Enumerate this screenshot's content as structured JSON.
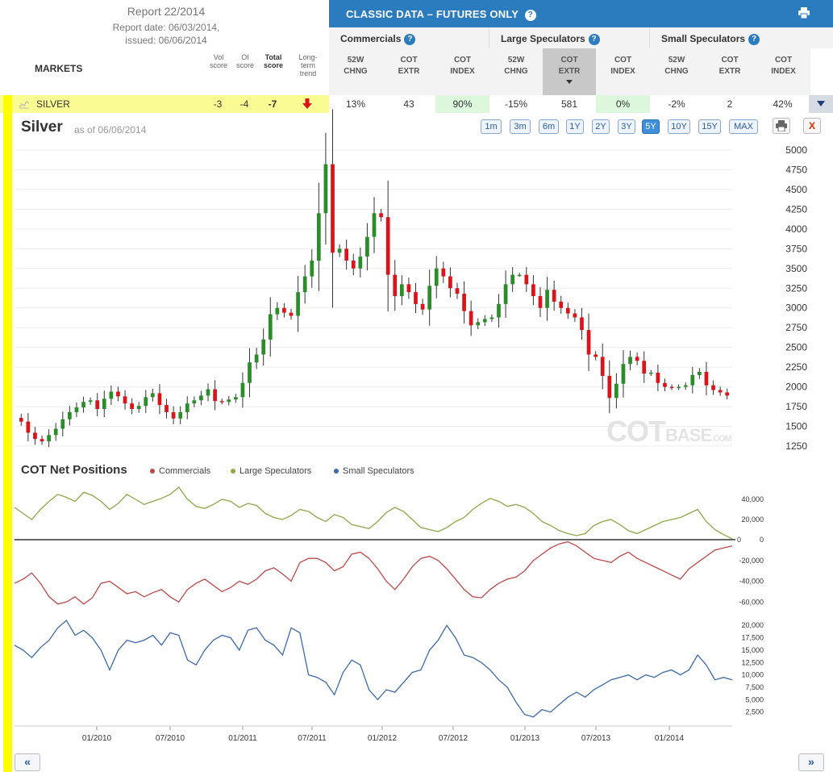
{
  "report": {
    "title": "Report 22/2014",
    "date": "Report date: 06/03/2014,",
    "issued": "issued: 06/06/2014"
  },
  "markets_header": "MARKETS",
  "score_headers": {
    "vol": [
      "Vol",
      "score"
    ],
    "oi": [
      "OI",
      "score"
    ],
    "total": [
      "Total",
      "score"
    ],
    "trend": [
      "Long-",
      "term",
      "trend"
    ]
  },
  "classic": {
    "title": "CLASSIC DATA – FUTURES ONLY",
    "help": "?",
    "print_icon": "print-icon"
  },
  "groups": [
    {
      "title": "Commercials",
      "cols": [
        [
          "52W",
          "CHNG"
        ],
        [
          "COT",
          "EXTR"
        ],
        [
          "COT",
          "INDEX"
        ]
      ]
    },
    {
      "title": "Large Speculators",
      "cols": [
        [
          "52W",
          "CHNG"
        ],
        [
          "COT",
          "EXTR"
        ],
        [
          "COT",
          "INDEX"
        ]
      ]
    },
    {
      "title": "Small Speculators",
      "cols": [
        [
          "52W",
          "CHNG"
        ],
        [
          "COT",
          "EXTR"
        ],
        [
          "COT",
          "INDEX"
        ]
      ]
    }
  ],
  "silver_row": {
    "name": "SILVER",
    "vol": "-3",
    "oi": "-4",
    "total": "-7",
    "trend": "down",
    "values": [
      "13%",
      "43",
      "90%",
      "-15%",
      "581",
      "0%",
      "-2%",
      "2",
      "42%"
    ],
    "highlight_green": [
      2,
      5
    ]
  },
  "chart_heading": {
    "title": "Silver",
    "asof": "as of 06/06/2014",
    "ranges": [
      "1m",
      "3m",
      "6m",
      "1Y",
      "2Y",
      "3Y",
      "5Y",
      "10Y",
      "15Y",
      "MAX"
    ],
    "active_range": "5Y",
    "close": "X"
  },
  "watermark": {
    "main": "COT",
    "rest": "BASE",
    "suffix": ".COM"
  },
  "cot_legend": {
    "title": "COT Net Positions",
    "items": [
      {
        "name": "Commercials",
        "color": "#b94a48"
      },
      {
        "name": "Large Speculators",
        "color": "#8ba84a"
      },
      {
        "name": "Small Speculators",
        "color": "#3e6aa6"
      }
    ]
  },
  "nav": {
    "prev": "«",
    "next": "»"
  },
  "colors": {
    "up": "#2a8d2a",
    "down": "#d9141a",
    "accent": "#2b7bbf",
    "highlight": "#fbfb94"
  },
  "chart_data": [
    {
      "type": "candlestick",
      "title": "Silver",
      "yticks": [
        1250,
        1500,
        1750,
        2000,
        2250,
        2500,
        2750,
        3000,
        3250,
        3500,
        3750,
        4000,
        4250,
        4500,
        4750,
        5000
      ],
      "ylim": [
        1250,
        5000
      ],
      "xticks": [
        "01/2010",
        "07/2010",
        "01/2011",
        "07/2011",
        "01/2012",
        "07/2012",
        "01/2013",
        "07/2013",
        "01/2014"
      ],
      "x_start": "2009-06",
      "x_end": "2014-06",
      "closes": [
        1560,
        1420,
        1340,
        1310,
        1390,
        1470,
        1590,
        1680,
        1740,
        1810,
        1830,
        1720,
        1850,
        1940,
        1880,
        1790,
        1720,
        1760,
        1870,
        1920,
        1770,
        1680,
        1600,
        1680,
        1790,
        1830,
        1890,
        1970,
        1820,
        1810,
        1840,
        1870,
        2050,
        2310,
        2410,
        2600,
        2920,
        3000,
        2940,
        2900,
        3200,
        3400,
        3600,
        4200,
        4820,
        3700,
        3750,
        3600,
        3500,
        3650,
        3900,
        4200,
        4150,
        3420,
        3150,
        3300,
        3200,
        3050,
        2980,
        3280,
        3500,
        3400,
        3250,
        3180,
        2960,
        2780,
        2820,
        2860,
        2880,
        3050,
        3300,
        3420,
        3420,
        3300,
        3150,
        3000,
        3230,
        3080,
        3000,
        2930,
        2880,
        2720,
        2410,
        2380,
        2140,
        1860,
        2040,
        2290,
        2380,
        2330,
        2170,
        2180,
        2050,
        2000,
        1990,
        2000,
        2020,
        2150,
        2190,
        2020,
        1960,
        1930,
        1890
      ],
      "series_note": "weekly closing price estimates, USD cents"
    },
    {
      "type": "line",
      "title": "COT Net Positions",
      "series": [
        {
          "name": "Large Speculators",
          "color": "#8ba84a",
          "yticks": [
            0,
            20000,
            40000
          ],
          "values": [
            32000,
            26000,
            20000,
            30000,
            38000,
            45000,
            42000,
            38000,
            47000,
            44000,
            38000,
            30000,
            36000,
            45000,
            40000,
            35000,
            38000,
            41000,
            45000,
            52000,
            40000,
            33000,
            31000,
            35000,
            40000,
            38000,
            32000,
            36000,
            34000,
            26000,
            22000,
            20000,
            24000,
            30000,
            28000,
            22000,
            18000,
            25000,
            22000,
            15000,
            13000,
            11000,
            18000,
            27000,
            32000,
            28000,
            20000,
            12000,
            10000,
            8000,
            12000,
            18000,
            22000,
            30000,
            36000,
            41000,
            38000,
            33000,
            35000,
            32000,
            26000,
            18000,
            14000,
            9000,
            6000,
            4000,
            6000,
            14000,
            18000,
            20000,
            15000,
            9000,
            6000,
            10000,
            14000,
            18000,
            20000,
            22000,
            26000,
            30000,
            18000,
            10000,
            5000,
            1000
          ]
        },
        {
          "name": "Commercials",
          "color": "#b94a48",
          "yticks": [
            -60000,
            -40000,
            -20000
          ],
          "values": [
            -42000,
            -38000,
            -32000,
            -42000,
            -55000,
            -62000,
            -60000,
            -55000,
            -62000,
            -56000,
            -42000,
            -40000,
            -46000,
            -52000,
            -50000,
            -55000,
            -51000,
            -48000,
            -55000,
            -60000,
            -48000,
            -42000,
            -38000,
            -44000,
            -50000,
            -46000,
            -40000,
            -43000,
            -38000,
            -30000,
            -27000,
            -33000,
            -40000,
            -22000,
            -18000,
            -18000,
            -22000,
            -30000,
            -26000,
            -14000,
            -12000,
            -18000,
            -28000,
            -40000,
            -48000,
            -38000,
            -26000,
            -18000,
            -16000,
            -20000,
            -28000,
            -38000,
            -48000,
            -55000,
            -56000,
            -48000,
            -42000,
            -38000,
            -36000,
            -30000,
            -20000,
            -14000,
            -8000,
            -4000,
            -2000,
            -6000,
            -12000,
            -18000,
            -20000,
            -22000,
            -16000,
            -12000,
            -18000,
            -22000,
            -26000,
            -30000,
            -34000,
            -38000,
            -28000,
            -22000,
            -16000,
            -10000,
            -8000,
            -6000
          ]
        },
        {
          "name": "Small Speculators",
          "color": "#3e6aa6",
          "yticks": [
            2500,
            5000,
            7500,
            10000,
            12500,
            15000,
            17500,
            20000
          ],
          "values": [
            16000,
            15000,
            13500,
            15500,
            17000,
            19500,
            21000,
            18000,
            19000,
            17500,
            15000,
            11000,
            15000,
            17000,
            16500,
            17000,
            18000,
            16000,
            18500,
            18000,
            13000,
            12000,
            15000,
            17000,
            18000,
            17500,
            15000,
            19000,
            19500,
            17000,
            16000,
            14000,
            19500,
            18500,
            10000,
            9500,
            8500,
            6000,
            10500,
            13000,
            12000,
            7000,
            5000,
            7000,
            6500,
            8500,
            10500,
            11000,
            15000,
            17000,
            20000,
            17500,
            14000,
            13500,
            12500,
            11000,
            9000,
            7500,
            4500,
            2000,
            1500,
            3000,
            2500,
            4000,
            5500,
            6500,
            5500,
            7000,
            8000,
            9000,
            9500,
            10000,
            9000,
            10000,
            9500,
            10500,
            11000,
            10000,
            11000,
            14000,
            12000,
            9000,
            9500,
            9000
          ]
        }
      ]
    }
  ]
}
